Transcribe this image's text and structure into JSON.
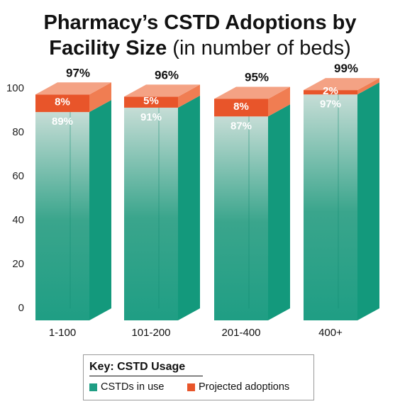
{
  "title": {
    "line1": "Pharmacy’s CSTD Adoptions by",
    "line2_bold": "Facility Size",
    "line2_rest": " (in number of beds)"
  },
  "colors": {
    "in_use_front_bottom": "#1f9e84",
    "in_use_front_top": "#c6ddd6",
    "in_use_side": "#13997c",
    "projected_front": "#e8552a",
    "projected_side": "#f07d52",
    "projected_top": "#f4a284"
  },
  "legend": {
    "title": "Key: CSTD Usage",
    "items": [
      {
        "label": "CSTDs in use",
        "color": "#1f9e84"
      },
      {
        "label": "Projected adoptions",
        "color": "#e8552a"
      }
    ]
  },
  "chart_data": {
    "type": "bar",
    "stacked": true,
    "three_d": true,
    "categories": [
      "1-100",
      "101-200",
      "201-400",
      "400+"
    ],
    "series": [
      {
        "name": "CSTDs in use",
        "values": [
          89,
          91,
          87,
          97
        ],
        "labels": [
          "89%",
          "91%",
          "87%",
          "97%"
        ]
      },
      {
        "name": "Projected adoptions",
        "values": [
          8,
          5,
          8,
          2
        ],
        "labels": [
          "8%",
          "5%",
          "8%",
          "2%"
        ]
      }
    ],
    "totals": [
      "97%",
      "96%",
      "95%",
      "99%"
    ],
    "y_ticks": [
      0,
      20,
      40,
      60,
      80,
      100
    ],
    "ylim": [
      0,
      100
    ],
    "legend_position": "bottom"
  }
}
